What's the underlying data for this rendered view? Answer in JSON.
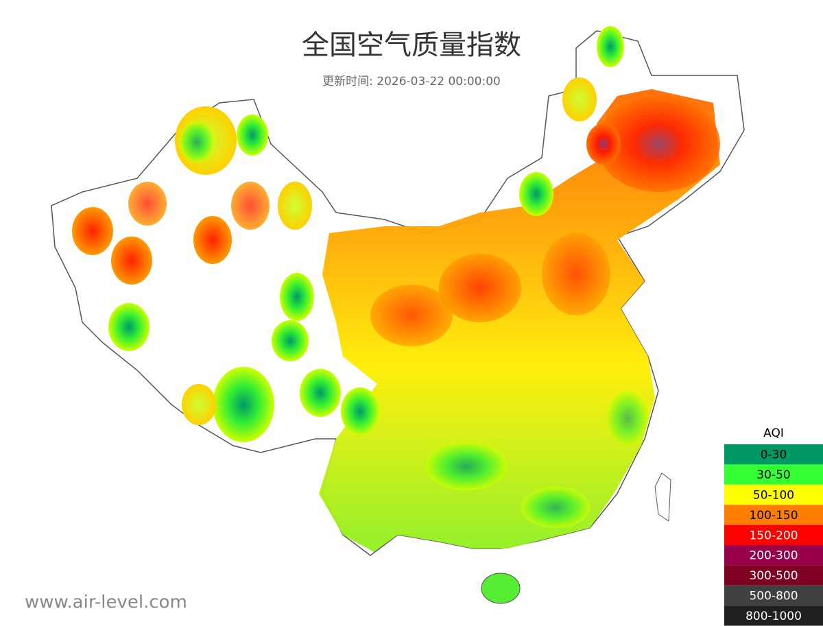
{
  "header": {
    "title": "全国空气质量指数",
    "subtitle": "更新时间: 2026-03-22 00:00:00"
  },
  "legend": {
    "title": "AQI",
    "items": [
      {
        "label": "0-30",
        "color": "#009966"
      },
      {
        "label": "30-50",
        "color": "#33ff33"
      },
      {
        "label": "50-100",
        "color": "#ffff00"
      },
      {
        "label": "100-150",
        "color": "#ff7e00"
      },
      {
        "label": "150-200",
        "color": "#ff0000"
      },
      {
        "label": "200-300",
        "color": "#99004c"
      },
      {
        "label": "300-500",
        "color": "#7e0023"
      },
      {
        "label": "500-800",
        "color": "#404040"
      },
      {
        "label": "800-1000",
        "color": "#202020"
      }
    ]
  },
  "footer": {
    "watermark": "www.air-level.com"
  }
}
